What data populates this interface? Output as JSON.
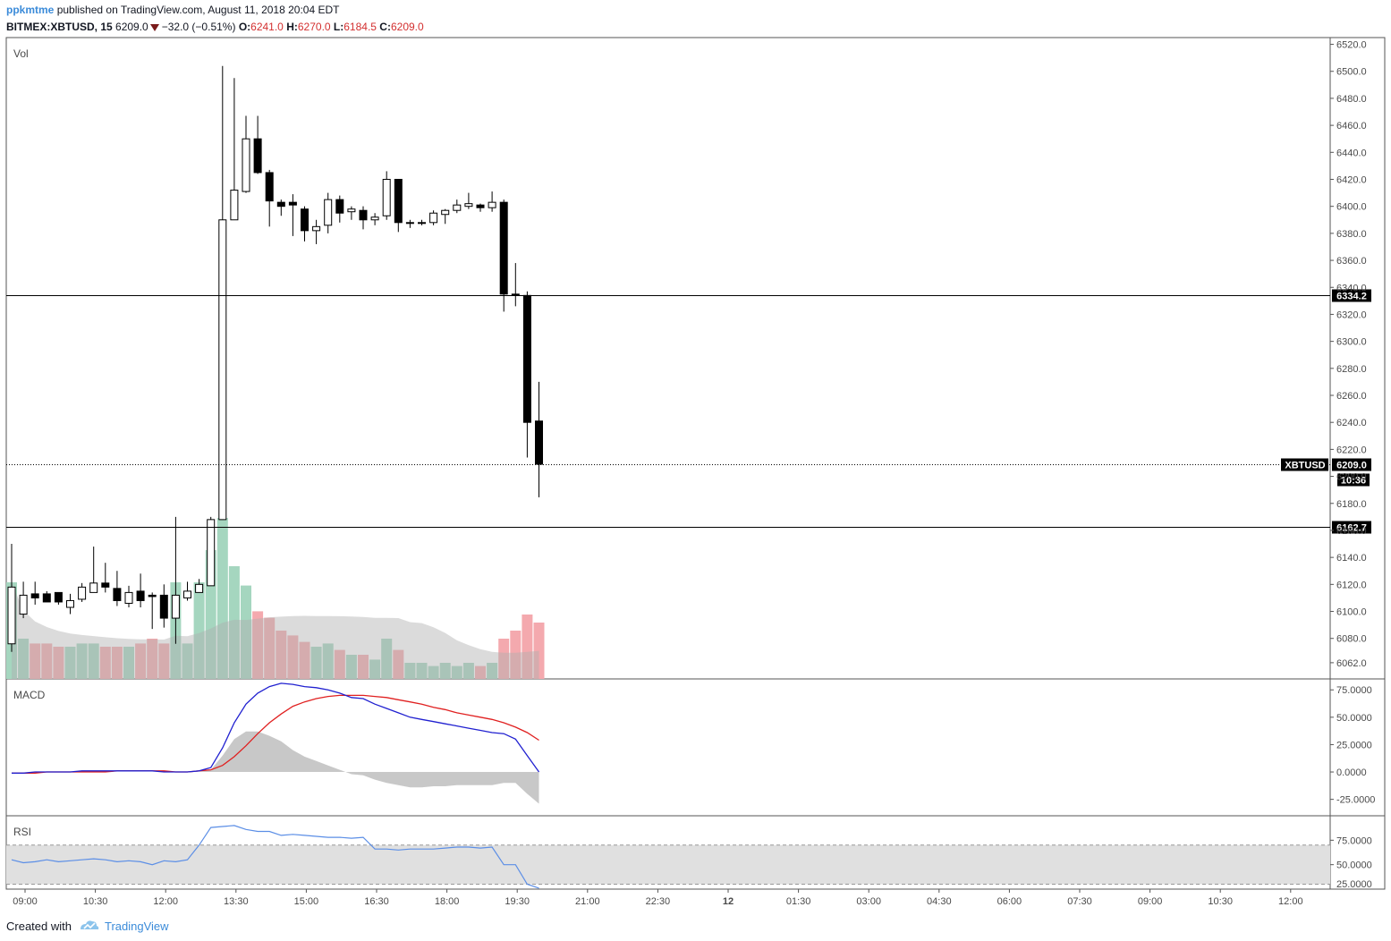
{
  "header": {
    "author": "ppkmtme",
    "published_text": "published on TradingView.com, August 11, 2018 20:04 EDT",
    "symbol": "BITMEX:XBTUSD, 15",
    "last": "6209.0",
    "change": "−32.0 (−0.51%)",
    "open_label": "O:",
    "open": "6241.0",
    "high_label": "H:",
    "high": "6270.0",
    "low_label": "L:",
    "low": "6184.5",
    "close_label": "C:",
    "close": "6209.0"
  },
  "footer": {
    "created_with": "Created with",
    "brand": "TradingView"
  },
  "panels": {
    "volume_title": "Vol",
    "macd_title": "MACD",
    "rsi_title": "RSI"
  },
  "colors": {
    "up_volume": "#a5d6bf",
    "down_volume": "#f4a9ae",
    "macd_line": "#2020d0",
    "signal_line": "#e02020",
    "histogram": "#c8c8c8",
    "rsi_line": "#5b8ee6",
    "accent": "#3b8bd9"
  },
  "chart_data": [
    {
      "type": "candlestick",
      "interval": "15",
      "ylim": [
        6050,
        6525
      ],
      "y_ticks": [
        "6520.0",
        "6500.0",
        "6480.0",
        "6460.0",
        "6440.0",
        "6420.0",
        "6400.0",
        "6380.0",
        "6360.0",
        "6340.0",
        "6320.0",
        "6300.0",
        "6280.0",
        "6260.0",
        "6240.0",
        "6220.0",
        "6200.0",
        "6180.0",
        "6160.0",
        "6140.0",
        "6120.0",
        "6100.0",
        "6080.0",
        "6062.0"
      ],
      "x_ticks": [
        "09:00",
        "10:30",
        "12:00",
        "13:30",
        "15:00",
        "16:30",
        "18:00",
        "19:30",
        "21:00",
        "22:30",
        "12",
        "01:30",
        "03:00",
        "04:30",
        "06:00",
        "07:30",
        "09:00",
        "10:30",
        "12:00"
      ],
      "x_ticks_bold": [
        "12"
      ],
      "horizontal_lines": [
        {
          "value": 6334.2,
          "label": "6334.2",
          "style": "solid"
        },
        {
          "value": 6162.7,
          "label": "6162.7",
          "style": "solid"
        },
        {
          "value": 6209.0,
          "label": "6209.0",
          "style": "dotted",
          "tag": "XBTUSD",
          "countdown": "10:36"
        }
      ],
      "candles": [
        [
          6076,
          6118,
          6070,
          6150
        ],
        [
          6098,
          6112,
          6095,
          6122
        ],
        [
          6113,
          6110,
          6105,
          6122
        ],
        [
          6113,
          6107,
          6107,
          6115
        ],
        [
          6114,
          6107,
          6105,
          6113
        ],
        [
          6103,
          6108,
          6098,
          6113
        ],
        [
          6109,
          6118,
          6107,
          6121
        ],
        [
          6114,
          6121,
          6114,
          6148
        ],
        [
          6121,
          6118,
          6114,
          6136
        ],
        [
          6117,
          6108,
          6104,
          6130
        ],
        [
          6106,
          6114,
          6103,
          6119
        ],
        [
          6115,
          6108,
          6103,
          6128
        ],
        [
          6112,
          6111,
          6087,
          6114
        ],
        [
          6112,
          6095,
          6088,
          6120
        ],
        [
          6095,
          6112,
          6076,
          6170
        ],
        [
          6110,
          6115,
          6108,
          6122
        ],
        [
          6114,
          6120,
          6114,
          6124
        ],
        [
          6119,
          6168,
          6119,
          6170
        ],
        [
          6168,
          6390,
          6168,
          6504
        ],
        [
          6390,
          6412,
          6390,
          6495
        ],
        [
          6411,
          6450,
          6410,
          6467
        ],
        [
          6450,
          6425,
          6424,
          6467
        ],
        [
          6425,
          6404,
          6385,
          6427
        ],
        [
          6403,
          6400,
          6393,
          6405
        ],
        [
          6403,
          6401,
          6378,
          6409
        ],
        [
          6398,
          6382,
          6374,
          6400
        ],
        [
          6382,
          6385,
          6372,
          6390
        ],
        [
          6386,
          6405,
          6380,
          6410
        ],
        [
          6405,
          6395,
          6388,
          6408
        ],
        [
          6396,
          6398,
          6390,
          6400
        ],
        [
          6397,
          6390,
          6383,
          6400
        ],
        [
          6390,
          6392,
          6386,
          6395
        ],
        [
          6393,
          6420,
          6390,
          6426
        ],
        [
          6420,
          6388,
          6381,
          6420
        ],
        [
          6388,
          6388,
          6384,
          6390
        ],
        [
          6388,
          6388,
          6386,
          6390
        ],
        [
          6388,
          6395,
          6386,
          6397
        ],
        [
          6394,
          6397,
          6387,
          6398
        ],
        [
          6397,
          6401,
          6395,
          6405
        ],
        [
          6400,
          6402,
          6398,
          6410
        ],
        [
          6401,
          6399,
          6396,
          6402
        ],
        [
          6399,
          6403,
          6396,
          6411
        ],
        [
          6403,
          6335,
          6322,
          6405
        ],
        [
          6335,
          6334,
          6326,
          6358
        ],
        [
          6334,
          6240,
          6214,
          6337
        ],
        [
          6241,
          6209,
          6184.5,
          6270
        ]
      ],
      "volume_relative": [
        0.6,
        0.25,
        0.22,
        0.22,
        0.2,
        0.2,
        0.22,
        0.22,
        0.2,
        0.2,
        0.2,
        0.22,
        0.25,
        0.22,
        0.6,
        0.22,
        0.6,
        0.8,
        1.0,
        0.7,
        0.58,
        0.42,
        0.38,
        0.3,
        0.27,
        0.23,
        0.2,
        0.22,
        0.18,
        0.15,
        0.15,
        0.12,
        0.25,
        0.18,
        0.1,
        0.1,
        0.08,
        0.1,
        0.08,
        0.1,
        0.08,
        0.1,
        0.25,
        0.3,
        0.4,
        0.35
      ]
    },
    {
      "type": "line",
      "name": "MACD",
      "ylim": [
        -40,
        85
      ],
      "y_ticks": [
        "75.0000",
        "50.0000",
        "25.0000",
        "0.0000",
        "-25.0000"
      ],
      "macd": [
        -1,
        -1,
        0,
        0,
        0,
        0,
        1,
        1,
        1,
        1,
        1,
        1,
        1,
        0,
        0,
        0,
        1,
        4,
        22,
        45,
        62,
        72,
        78,
        81,
        80,
        78,
        77,
        75,
        72,
        68,
        67,
        62,
        58,
        54,
        50,
        48,
        46,
        44,
        42,
        40,
        38,
        36,
        35,
        30,
        15,
        0
      ],
      "signal": [
        -1,
        -1,
        -1,
        0,
        0,
        0,
        0,
        0,
        0,
        1,
        1,
        1,
        1,
        1,
        0,
        0,
        1,
        2,
        6,
        14,
        24,
        35,
        45,
        53,
        60,
        64,
        67,
        69,
        70,
        70,
        70,
        69,
        68,
        66,
        64,
        62,
        59,
        57,
        54,
        52,
        50,
        48,
        45,
        41,
        36,
        29
      ],
      "histogram": [
        0,
        0,
        0,
        0,
        0,
        0,
        0,
        0,
        0,
        0,
        0,
        0,
        0,
        0,
        0,
        0,
        0,
        2,
        15,
        30,
        37,
        37,
        33,
        28,
        20,
        14,
        10,
        6,
        2,
        -2,
        -3,
        -7,
        -10,
        -12,
        -14,
        -14,
        -13,
        -13,
        -12,
        -12,
        -12,
        -12,
        -10,
        -10,
        -20,
        -29
      ]
    },
    {
      "type": "line",
      "name": "RSI",
      "ylim": [
        25,
        100
      ],
      "y_ticks": [
        "75.0000",
        "50.0000",
        "25.0000"
      ],
      "bands": [
        30,
        70
      ],
      "values": [
        55,
        52,
        53,
        55,
        53,
        54,
        55,
        56,
        55,
        53,
        54,
        53,
        50,
        54,
        53,
        55,
        70,
        88,
        89,
        90,
        86,
        84,
        84,
        80,
        81,
        80,
        79,
        78,
        78,
        77,
        78,
        66,
        66,
        65,
        66,
        66,
        66,
        67,
        68,
        68,
        67,
        68,
        50,
        50,
        30,
        26
      ]
    }
  ]
}
